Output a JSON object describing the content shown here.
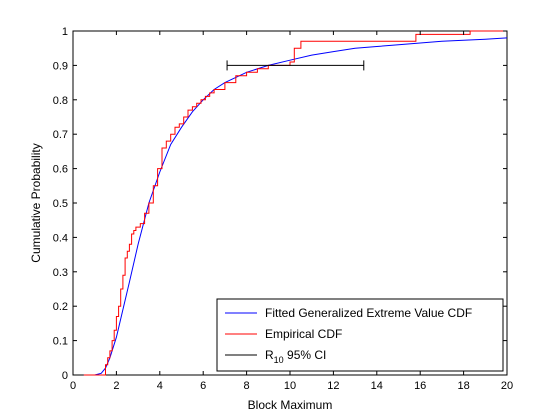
{
  "chart_data": {
    "type": "line",
    "title": "",
    "xlabel": "Block Maximum",
    "ylabel": "Cumulative Probability",
    "xlim": [
      0,
      20
    ],
    "ylim": [
      0,
      1
    ],
    "grid": false,
    "legend_position": "bottom-right",
    "x_ticks": [
      "0",
      "2",
      "4",
      "6",
      "8",
      "10",
      "12",
      "14",
      "16",
      "18",
      "20"
    ],
    "y_ticks": [
      "0",
      "0.1",
      "0.2",
      "0.3",
      "0.4",
      "0.5",
      "0.6",
      "0.7",
      "0.8",
      "0.9",
      "1"
    ],
    "series": [
      {
        "name": "Fitted Generalized Extreme Value CDF",
        "color": "#0000ff",
        "style": "line",
        "x": [
          0.5,
          1.0,
          1.3,
          1.5,
          1.7,
          2.0,
          2.3,
          2.6,
          3.0,
          3.5,
          4.0,
          4.5,
          5.0,
          5.5,
          6.0,
          6.5,
          7.0,
          7.5,
          8.0,
          9.0,
          10.0,
          11.0,
          12.0,
          13.0,
          14.0,
          15.0,
          16.0,
          17.0,
          18.0,
          19.0,
          20.0
        ],
        "y": [
          0.0,
          0.0,
          0.005,
          0.02,
          0.05,
          0.11,
          0.19,
          0.27,
          0.38,
          0.5,
          0.59,
          0.67,
          0.72,
          0.765,
          0.8,
          0.83,
          0.85,
          0.865,
          0.88,
          0.9,
          0.915,
          0.93,
          0.94,
          0.95,
          0.955,
          0.96,
          0.965,
          0.97,
          0.973,
          0.976,
          0.98
        ]
      },
      {
        "name": "Empirical CDF",
        "color": "#ff0000",
        "style": "step",
        "x": [
          0.5,
          1.5,
          1.6,
          1.7,
          1.8,
          1.9,
          2.0,
          2.1,
          2.2,
          2.3,
          2.4,
          2.5,
          2.6,
          2.7,
          2.8,
          2.9,
          3.0,
          3.1,
          3.3,
          3.5,
          3.7,
          3.9,
          4.1,
          4.3,
          4.5,
          4.7,
          4.9,
          5.1,
          5.3,
          5.5,
          5.7,
          5.9,
          6.1,
          6.3,
          6.5,
          7.0,
          7.5,
          8.0,
          8.5,
          9.0,
          10.0,
          10.2,
          10.5,
          15.8,
          18.3
        ],
        "y": [
          0.0,
          0.03,
          0.05,
          0.07,
          0.1,
          0.13,
          0.17,
          0.2,
          0.25,
          0.29,
          0.34,
          0.36,
          0.38,
          0.41,
          0.42,
          0.43,
          0.43,
          0.44,
          0.47,
          0.5,
          0.55,
          0.6,
          0.66,
          0.68,
          0.7,
          0.72,
          0.73,
          0.75,
          0.77,
          0.78,
          0.79,
          0.8,
          0.81,
          0.82,
          0.83,
          0.85,
          0.87,
          0.88,
          0.89,
          0.9,
          0.91,
          0.95,
          0.97,
          0.99,
          1.0
        ]
      },
      {
        "name": "R10 95% CI",
        "legend_base": "R",
        "legend_sub": "10",
        "legend_rest": " 95% CI",
        "color": "#000000",
        "style": "errorbar",
        "x": [
          7.1,
          13.4
        ],
        "y": [
          0.9,
          0.9
        ]
      }
    ]
  }
}
